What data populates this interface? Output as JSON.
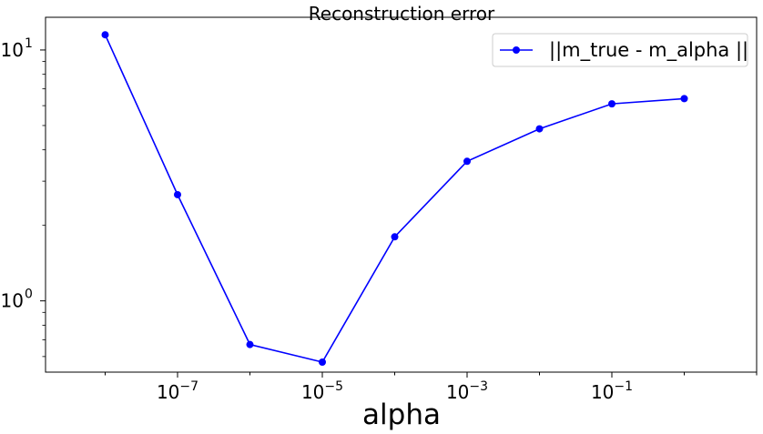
{
  "chart_data": {
    "type": "line",
    "title": "Reconstruction error",
    "xlabel": "alpha",
    "ylabel": "",
    "xscale": "log",
    "yscale": "log",
    "xlim": [
      1.5e-09,
      10
    ],
    "ylim": [
      0.52,
      13.5
    ],
    "grid": false,
    "legend_position": "top-right",
    "x_ticks": [
      {
        "value": 1e-07,
        "base": "10",
        "exp": "−7"
      },
      {
        "value": 1e-05,
        "base": "10",
        "exp": "−5"
      },
      {
        "value": 0.001,
        "base": "10",
        "exp": "−3"
      },
      {
        "value": 0.1,
        "base": "10",
        "exp": "−1"
      }
    ],
    "y_ticks": [
      {
        "value": 1,
        "base": "10",
        "exp": "0"
      },
      {
        "value": 10,
        "base": "10",
        "exp": "1"
      }
    ],
    "series": [
      {
        "name": "||m_true - m_alpha ||",
        "color": "#0000ff",
        "marker": "circle",
        "x": [
          1e-08,
          1e-07,
          1e-06,
          1e-05,
          0.0001,
          0.001,
          0.01,
          0.1,
          1
        ],
        "y": [
          11.5,
          2.65,
          0.67,
          0.57,
          1.8,
          3.6,
          4.85,
          6.1,
          6.4
        ]
      }
    ]
  }
}
